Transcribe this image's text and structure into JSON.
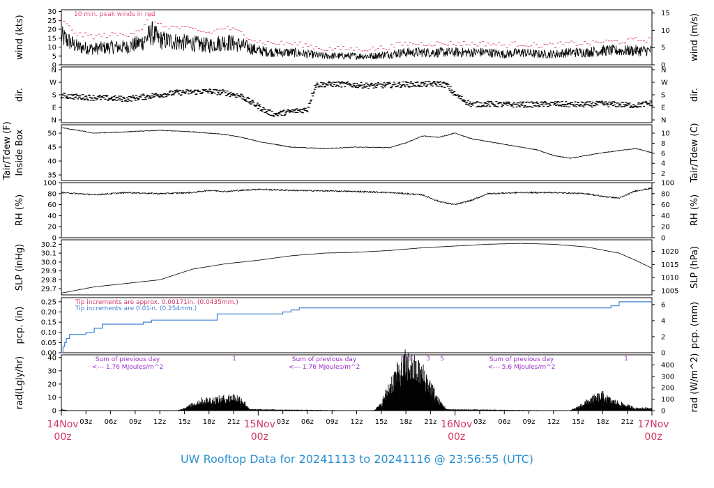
{
  "footer": {
    "title": "UW Rooftop Data for 20241113  to  20241116 @ 23:56:55  (UTC)",
    "color": "#2b8fd1"
  },
  "colors": {
    "day_label": "#d0365f",
    "peak": "#e0507a",
    "precip_line": "#3d7fd1",
    "precip_note_blue": "#3d7fd1",
    "radiation_annot": "#9a30c9"
  },
  "x_axis": {
    "day_labels": [
      {
        "day": "14Nov",
        "hour": "00z",
        "at_hours": 0
      },
      {
        "day": "15Nov",
        "hour": "00z",
        "at_hours": 24
      },
      {
        "day": "16Nov",
        "hour": "00z",
        "at_hours": 48
      },
      {
        "day": "17Nov",
        "hour": "00z",
        "at_hours": 72
      }
    ],
    "hour_labels": [
      "03z",
      "06z",
      "09z",
      "12z",
      "15z",
      "18z",
      "21z",
      "03z",
      "06z",
      "09z",
      "12z",
      "15z",
      "18z",
      "21z",
      "03z",
      "06z",
      "09z",
      "12z",
      "15z",
      "18z",
      "21z"
    ]
  },
  "panels": [
    {
      "id": "wind",
      "ylabel_left": [
        "wind (kts)"
      ],
      "ylabel_right": "wind (m/s)",
      "left_ticks": [
        "0",
        "5",
        "10",
        "15",
        "20",
        "25",
        "30"
      ],
      "right_ticks": [
        "0",
        "5",
        "10",
        "15"
      ],
      "note": "10 min. peak winds in red"
    },
    {
      "id": "dir",
      "ylabel_left": [
        "dir."
      ],
      "ylabel_right": "dir.",
      "left_ticks": [
        "N",
        "E",
        "S",
        "W",
        "N"
      ],
      "right_ticks": [
        "N",
        "E",
        "S",
        "W",
        "N"
      ]
    },
    {
      "id": "temp",
      "ylabel_left": [
        "Tair/Tdew (F)",
        "Inside Box"
      ],
      "ylabel_right": "Tair/Tdew (C)",
      "left_ticks": [
        "35",
        "40",
        "45",
        "50"
      ],
      "right_ticks": [
        "2",
        "4",
        "6",
        "8",
        "10"
      ]
    },
    {
      "id": "rh",
      "ylabel_left": [
        "RH (%)"
      ],
      "ylabel_right": "RH (%)",
      "left_ticks": [
        "0",
        "20",
        "40",
        "60",
        "80",
        "100"
      ],
      "right_ticks": [
        "0",
        "20",
        "40",
        "60",
        "80",
        "100"
      ]
    },
    {
      "id": "slp",
      "ylabel_left": [
        "SLP (inHg)"
      ],
      "ylabel_right": "SLP (hPa)",
      "left_ticks": [
        "29.7",
        "29.8",
        "29.9",
        "30.0",
        "30.1",
        "30.2"
      ],
      "right_ticks": [
        "1005",
        "1010",
        "1015",
        "1020"
      ]
    },
    {
      "id": "pcp",
      "ylabel_left": [
        "pcp. (in)"
      ],
      "ylabel_right": "pcp. (mm)",
      "left_ticks": [
        "0.00",
        "0.05",
        "0.10",
        "0.15",
        "0.20",
        "0.25"
      ],
      "right_ticks": [
        "0",
        "2",
        "4",
        "6"
      ],
      "notes": [
        "Tip increments are approx. 0.00171in. (0.0435mm.)",
        "Tip increments are 0.01in. (0.254mm.)"
      ]
    },
    {
      "id": "rad",
      "ylabel_left": [
        "rad(Lgly/hr)"
      ],
      "ylabel_right": "rad (W/m^2)",
      "left_ticks": [
        "0",
        "10",
        "20",
        "30",
        "40"
      ],
      "right_ticks": [
        "0",
        "100",
        "200",
        "300",
        "400"
      ],
      "annotations": [
        {
          "line1": "Sum of previous day",
          "line2": "<--- 1.76 MJoules/m^2"
        },
        {
          "line1": "Sum of previous day",
          "line2": "<--- 1.76 MJoules/m^2"
        },
        {
          "line1": "Sum of previous day",
          "line2": "<--- 5.6 MJoules/m^2"
        }
      ],
      "markers": [
        "1",
        "1",
        "1",
        "3",
        "5",
        "1"
      ]
    }
  ],
  "chart_data": [
    {
      "type": "line",
      "title": "wind (kts)",
      "ylim": [
        0,
        31
      ],
      "x_units": "hours since 14Nov 00z",
      "series": [
        {
          "name": "wind",
          "x": [
            0,
            2,
            4,
            6,
            8,
            10,
            11,
            12,
            14,
            16,
            18,
            20,
            22,
            24,
            26,
            28,
            30,
            32,
            34,
            36,
            38,
            40,
            42,
            44,
            46,
            48,
            50,
            52,
            54,
            56,
            58,
            60,
            62,
            64,
            66,
            68,
            70,
            72
          ],
          "values": [
            16,
            10,
            9,
            10,
            10,
            13,
            18,
            14,
            13,
            12,
            11,
            13,
            11,
            8,
            7,
            7,
            6,
            5,
            5,
            5,
            5,
            6,
            7,
            7,
            7,
            7,
            7,
            7,
            6,
            7,
            6,
            6,
            7,
            7,
            8,
            8,
            8,
            8
          ]
        },
        {
          "name": "10 min. peak winds",
          "x": [
            0,
            2,
            4,
            6,
            8,
            10,
            11,
            12,
            14,
            16,
            18,
            20,
            22,
            24,
            26,
            28,
            30,
            32,
            34,
            36,
            38,
            40,
            42,
            44,
            46,
            48,
            50,
            52,
            54,
            56,
            58,
            60,
            62,
            64,
            66,
            68,
            70,
            72
          ],
          "values": [
            25,
            17,
            16,
            17,
            17,
            21,
            28,
            22,
            21,
            20,
            18,
            21,
            18,
            13,
            12,
            12,
            11,
            9,
            9,
            9,
            9,
            10,
            12,
            12,
            12,
            12,
            12,
            12,
            11,
            12,
            11,
            11,
            12,
            12,
            13,
            13,
            14,
            14
          ]
        }
      ]
    },
    {
      "type": "scatter",
      "title": "dir.",
      "y_labels": [
        "N",
        "E",
        "S",
        "W",
        "N"
      ],
      "x_units": "hours since 14Nov 00z",
      "series": [
        {
          "name": "direction (deg)",
          "x": [
            0,
            2,
            4,
            6,
            8,
            10,
            12,
            14,
            16,
            18,
            20,
            22,
            23,
            24,
            25,
            26,
            28,
            30,
            31,
            32,
            34,
            36,
            38,
            40,
            42,
            44,
            46,
            47,
            48,
            50,
            52,
            54,
            56,
            58,
            60,
            62,
            64,
            66,
            68,
            70,
            72
          ],
          "values": [
            175,
            165,
            160,
            155,
            150,
            165,
            180,
            195,
            200,
            205,
            195,
            170,
            130,
            100,
            60,
            40,
            60,
            75,
            250,
            255,
            255,
            250,
            245,
            250,
            255,
            255,
            260,
            250,
            180,
            110,
            115,
            110,
            110,
            110,
            115,
            110,
            110,
            115,
            110,
            105,
            120
          ]
        }
      ]
    },
    {
      "type": "line",
      "title": "Tair/Tdew (F) Inside Box",
      "ylim": [
        33,
        53
      ],
      "x_units": "hours since 14Nov 00z",
      "series": [
        {
          "name": "temp",
          "x": [
            0,
            4,
            8,
            12,
            16,
            20,
            22,
            24,
            28,
            32,
            36,
            40,
            42,
            44,
            46,
            48,
            50,
            54,
            58,
            60,
            62,
            66,
            70,
            72
          ],
          "values": [
            52,
            50,
            50.5,
            51,
            50.5,
            49.5,
            48.5,
            47,
            45,
            44.5,
            45,
            44.8,
            46.5,
            49,
            48.5,
            50,
            48,
            46,
            44,
            42,
            41,
            43,
            44.5,
            43
          ]
        }
      ]
    },
    {
      "type": "line",
      "title": "RH (%)",
      "ylim": [
        0,
        100
      ],
      "x_units": "hours since 14Nov 00z",
      "series": [
        {
          "name": "RH",
          "x": [
            0,
            4,
            8,
            12,
            16,
            18,
            20,
            24,
            28,
            32,
            36,
            40,
            44,
            46,
            48,
            50,
            52,
            56,
            60,
            64,
            66,
            68,
            70,
            72
          ],
          "values": [
            82,
            78,
            82,
            80,
            82,
            86,
            84,
            88,
            86,
            85,
            84,
            82,
            78,
            66,
            60,
            68,
            80,
            82,
            82,
            80,
            75,
            72,
            85,
            90
          ]
        }
      ]
    },
    {
      "type": "line",
      "title": "SLP (inHg)",
      "ylim": [
        29.63,
        30.25
      ],
      "x_units": "hours since 14Nov 00z",
      "series": [
        {
          "name": "SLP",
          "x": [
            0,
            4,
            8,
            12,
            16,
            20,
            24,
            28,
            32,
            36,
            40,
            44,
            48,
            52,
            56,
            60,
            64,
            68,
            70,
            72
          ],
          "values": [
            29.65,
            29.72,
            29.76,
            29.8,
            29.92,
            29.98,
            30.02,
            30.07,
            30.1,
            30.11,
            30.13,
            30.16,
            30.18,
            30.2,
            30.21,
            30.2,
            30.17,
            30.1,
            30.02,
            29.93
          ]
        }
      ]
    },
    {
      "type": "line",
      "title": "pcp. (in)",
      "ylim": [
        0,
        0.27
      ],
      "x_units": "hours since 14Nov 00z",
      "series": [
        {
          "name": "precipitation",
          "x": [
            0,
            0.2,
            0.4,
            0.6,
            1,
            3,
            4,
            5,
            6,
            7,
            10,
            11,
            12,
            18,
            19,
            26,
            27,
            28,
            29,
            30,
            52,
            66,
            67,
            68,
            72
          ],
          "values": [
            0,
            0.03,
            0.05,
            0.07,
            0.09,
            0.1,
            0.12,
            0.14,
            0.14,
            0.14,
            0.15,
            0.16,
            0.16,
            0.16,
            0.19,
            0.19,
            0.2,
            0.21,
            0.22,
            0.22,
            0.22,
            0.22,
            0.23,
            0.25,
            0.25
          ]
        }
      ]
    },
    {
      "type": "area",
      "title": "rad(Lgly/hr)",
      "ylim": [
        0,
        42
      ],
      "x_units": "hours since 14Nov 00z",
      "series": [
        {
          "name": "radiation",
          "x": [
            0,
            1,
            14,
            15,
            17,
            19,
            20,
            21,
            22,
            23,
            38,
            39,
            40,
            41,
            42,
            43,
            44,
            45,
            46,
            47,
            62,
            63,
            64,
            65,
            66,
            67,
            68,
            69,
            70
          ],
          "values": [
            1,
            0,
            0,
            2,
            8,
            9,
            10,
            11,
            9,
            1,
            0,
            5,
            20,
            30,
            38,
            34,
            30,
            20,
            8,
            1,
            0,
            3,
            7,
            10,
            12,
            8,
            6,
            4,
            2
          ]
        }
      ]
    }
  ]
}
